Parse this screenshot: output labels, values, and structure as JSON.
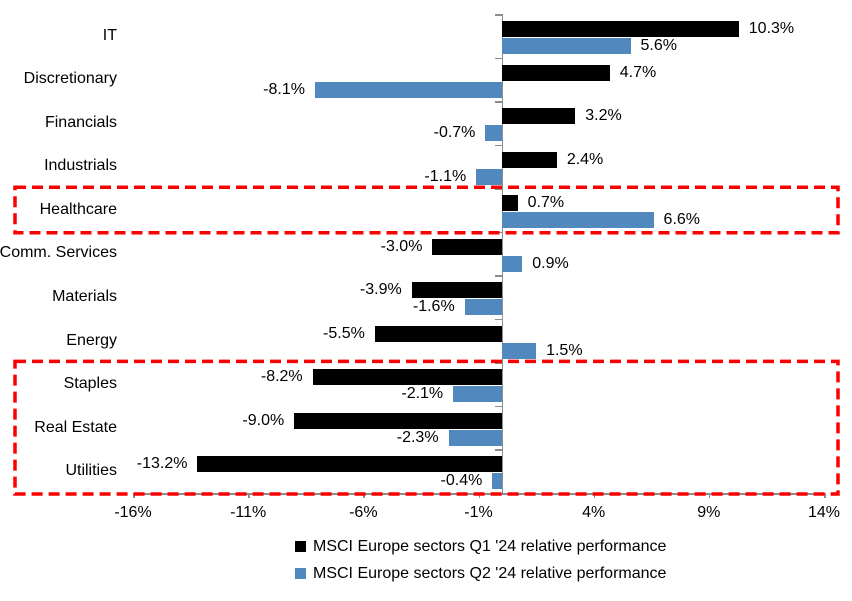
{
  "chart_data": {
    "type": "bar",
    "orientation": "horizontal",
    "title": "",
    "categories": [
      "IT",
      "Discretionary",
      "Financials",
      "Industrials",
      "Healthcare",
      "Comm. Services",
      "Materials",
      "Energy",
      "Staples",
      "Real Estate",
      "Utilities"
    ],
    "series": [
      {
        "name": "MSCI Europe sectors Q1 '24 relative performance",
        "color": "#000000",
        "values": [
          10.3,
          4.7,
          3.2,
          2.4,
          0.7,
          -3.0,
          -3.9,
          -5.5,
          -8.2,
          -9.0,
          -13.2
        ],
        "labels": [
          "10.3%",
          "4.7%",
          "3.2%",
          "2.4%",
          "0.7%",
          "-3.0%",
          "-3.9%",
          "-5.5%",
          "-8.2%",
          "-9.0%",
          "-13.2%"
        ]
      },
      {
        "name": "MSCI Europe sectors Q2 '24 relative performance",
        "color": "#5189BE",
        "values": [
          5.6,
          -8.1,
          -0.7,
          -1.1,
          6.6,
          0.9,
          -1.6,
          1.5,
          -2.1,
          -2.3,
          -0.4
        ],
        "labels": [
          "5.6%",
          "-8.1%",
          "-0.7%",
          "-1.1%",
          "6.6%",
          "0.9%",
          "-1.6%",
          "1.5%",
          "-2.1%",
          "-2.3%",
          "-0.4%"
        ]
      }
    ],
    "xlim": [
      -16,
      14
    ],
    "x_ticks": [
      {
        "value": -16,
        "label": "-16%"
      },
      {
        "value": -11,
        "label": "-11%"
      },
      {
        "value": -6,
        "label": "-6%"
      },
      {
        "value": -1,
        "label": "-1%"
      },
      {
        "value": 4,
        "label": "4%"
      },
      {
        "value": 9,
        "label": "9%"
      },
      {
        "value": 14,
        "label": "14%"
      }
    ],
    "grid": false,
    "legend_position": "bottom",
    "axis_color": "#8C8C8C",
    "annotations": [
      {
        "type": "dashed-box",
        "color": "#FB0000",
        "row_start": 4,
        "row_end": 4,
        "rows": [
          "Healthcare"
        ]
      },
      {
        "type": "dashed-box",
        "color": "#FB0000",
        "row_start": 8,
        "row_end": 10,
        "rows": [
          "Staples",
          "Real Estate",
          "Utilities"
        ]
      }
    ]
  }
}
